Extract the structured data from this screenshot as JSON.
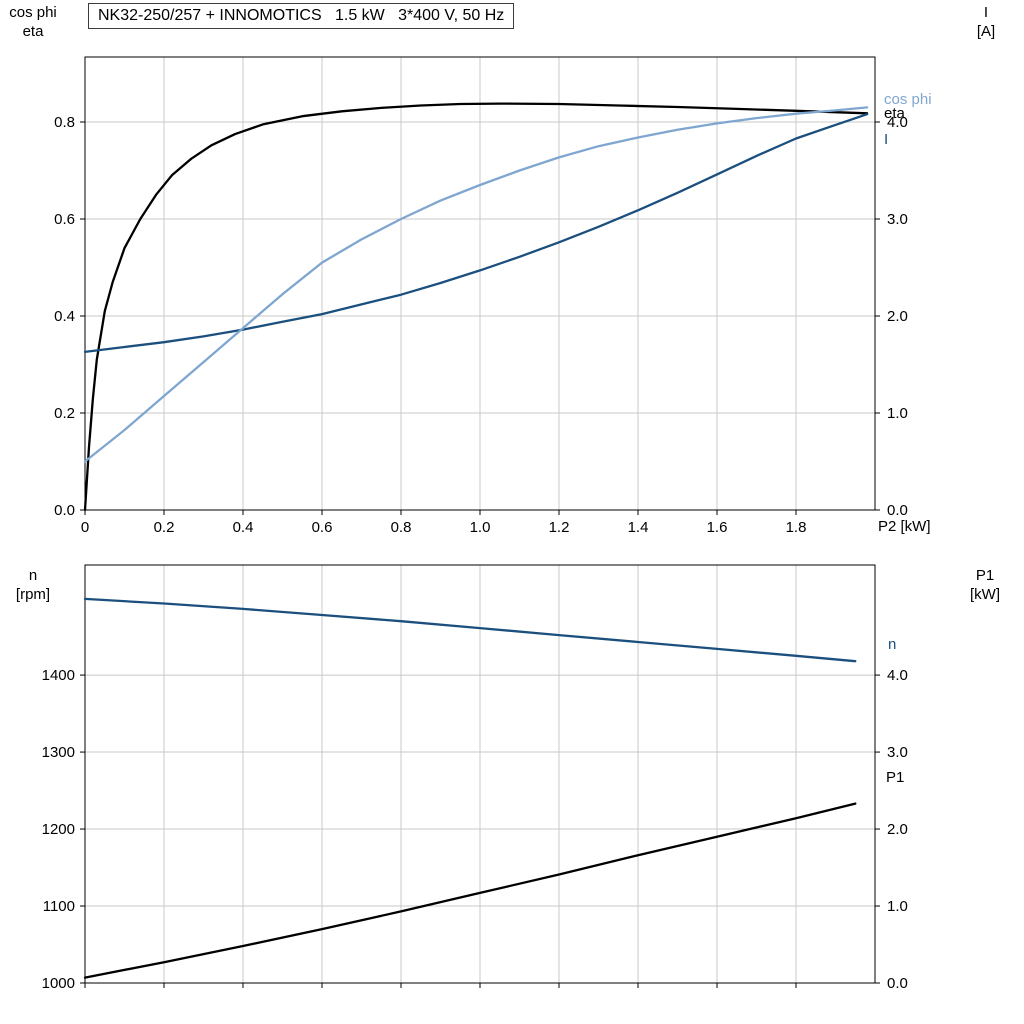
{
  "header": {
    "title": "NK32-250/257 + INNOMOTICS   1.5 kW   3*400 V, 50 Hz"
  },
  "axis_corner_labels": {
    "top_left_line1": "cos phi",
    "top_left_line2": "eta",
    "top_right_line1": "I",
    "top_right_line2": "[A]",
    "bottom_left_line1": "n",
    "bottom_left_line2": "[rpm]",
    "bottom_right_line1": "P1",
    "bottom_right_line2": "[kW]"
  },
  "colors": {
    "black_curve": "#000000",
    "dark_blue_curve": "#1b4f7e",
    "light_blue_curve": "#7fa6d0",
    "grid": "#c8c8c8",
    "plot_border": "#000000"
  },
  "chart_data": [
    {
      "type": "line",
      "name": "motor-electrical-curves",
      "title": "NK32-250/257 + INNOMOTICS   1.5 kW   3*400 V, 50 Hz",
      "grid": true,
      "x_axis": {
        "label": "P2 [kW]",
        "range": [
          0,
          2.0
        ],
        "ticks": [
          0,
          0.2,
          0.4,
          0.6,
          0.8,
          1.0,
          1.2,
          1.4,
          1.6,
          1.8
        ],
        "tick_labels": [
          "0",
          "0.2",
          "0.4",
          "0.6",
          "0.8",
          "1.0",
          "1.2",
          "1.4",
          "1.6",
          "1.8"
        ]
      },
      "y_left": {
        "label": "cos phi / eta",
        "range": [
          0,
          0.934
        ],
        "ticks": [
          0,
          0.2,
          0.4,
          0.6,
          0.8
        ],
        "tick_labels": [
          "0.0",
          "0.2",
          "0.4",
          "0.6",
          "0.8"
        ]
      },
      "y_right": {
        "label": "I [A]",
        "range": [
          0,
          4.67
        ],
        "ticks": [
          0,
          1.0,
          2.0,
          3.0,
          4.0
        ],
        "tick_labels": [
          "0.0",
          "1.0",
          "2.0",
          "3.0",
          "4.0"
        ]
      },
      "series": [
        {
          "name": "eta",
          "axis": "left",
          "color": "#000000",
          "x": [
            0,
            0.01,
            0.02,
            0.03,
            0.05,
            0.07,
            0.1,
            0.14,
            0.18,
            0.22,
            0.27,
            0.32,
            0.38,
            0.45,
            0.55,
            0.65,
            0.75,
            0.85,
            0.95,
            1.05,
            1.2,
            1.35,
            1.5,
            1.65,
            1.8,
            1.98
          ],
          "y": [
            0,
            0.13,
            0.23,
            0.31,
            0.41,
            0.47,
            0.54,
            0.6,
            0.65,
            0.69,
            0.725,
            0.752,
            0.775,
            0.795,
            0.812,
            0.822,
            0.829,
            0.834,
            0.837,
            0.838,
            0.837,
            0.834,
            0.831,
            0.827,
            0.823,
            0.818
          ]
        },
        {
          "name": "I",
          "axis": "right",
          "color": "#1b4f7e",
          "x": [
            0,
            0.1,
            0.2,
            0.3,
            0.4,
            0.5,
            0.6,
            0.7,
            0.8,
            0.9,
            1.0,
            1.1,
            1.2,
            1.3,
            1.4,
            1.5,
            1.6,
            1.7,
            1.8,
            1.9,
            1.98
          ],
          "y": [
            1.63,
            1.68,
            1.73,
            1.79,
            1.86,
            1.94,
            2.02,
            2.12,
            2.22,
            2.34,
            2.47,
            2.61,
            2.76,
            2.92,
            3.09,
            3.27,
            3.46,
            3.65,
            3.83,
            3.97,
            4.08
          ]
        },
        {
          "name": "cos phi",
          "axis": "left",
          "color": "#7fa6d0",
          "x": [
            0,
            0.1,
            0.2,
            0.3,
            0.4,
            0.5,
            0.6,
            0.7,
            0.8,
            0.9,
            1.0,
            1.1,
            1.2,
            1.3,
            1.4,
            1.5,
            1.6,
            1.7,
            1.8,
            1.9,
            1.98
          ],
          "y": [
            0.1,
            0.165,
            0.235,
            0.305,
            0.375,
            0.445,
            0.51,
            0.558,
            0.6,
            0.638,
            0.67,
            0.7,
            0.727,
            0.75,
            0.768,
            0.784,
            0.797,
            0.808,
            0.817,
            0.824,
            0.83
          ]
        }
      ]
    },
    {
      "type": "line",
      "name": "speed-and-input-power-curves",
      "title": "",
      "grid": true,
      "x_axis": {
        "label": "",
        "range": [
          0,
          2.0
        ],
        "ticks": [
          0,
          0.2,
          0.4,
          0.6,
          0.8,
          1.0,
          1.2,
          1.4,
          1.6,
          1.8
        ],
        "tick_labels": []
      },
      "y_left": {
        "label": "n [rpm]",
        "range": [
          1000,
          1543
        ],
        "ticks": [
          1000,
          1100,
          1200,
          1300,
          1400
        ],
        "tick_labels": [
          "1000",
          "1100",
          "1200",
          "1300",
          "1400"
        ]
      },
      "y_right": {
        "label": "P1 [kW]",
        "range": [
          0,
          5.43
        ],
        "ticks": [
          0,
          1.0,
          2.0,
          3.0,
          4.0
        ],
        "tick_labels": [
          "0.0",
          "1.0",
          "2.0",
          "3.0",
          "4.0"
        ]
      },
      "series": [
        {
          "name": "P1",
          "axis": "right",
          "color": "#000000",
          "x": [
            0,
            0.2,
            0.4,
            0.6,
            0.8,
            1.0,
            1.2,
            1.4,
            1.6,
            1.8,
            1.95
          ],
          "y": [
            0.07,
            0.27,
            0.48,
            0.7,
            0.93,
            1.17,
            1.41,
            1.66,
            1.9,
            2.14,
            2.33
          ]
        },
        {
          "name": "n",
          "axis": "left",
          "color": "#1b4f7e",
          "x": [
            0,
            0.2,
            0.4,
            0.6,
            0.8,
            1.0,
            1.2,
            1.4,
            1.6,
            1.8,
            1.95
          ],
          "y": [
            1499,
            1493,
            1486,
            1478,
            1470,
            1461,
            1452,
            1443,
            1434,
            1425,
            1418
          ]
        }
      ]
    }
  ]
}
